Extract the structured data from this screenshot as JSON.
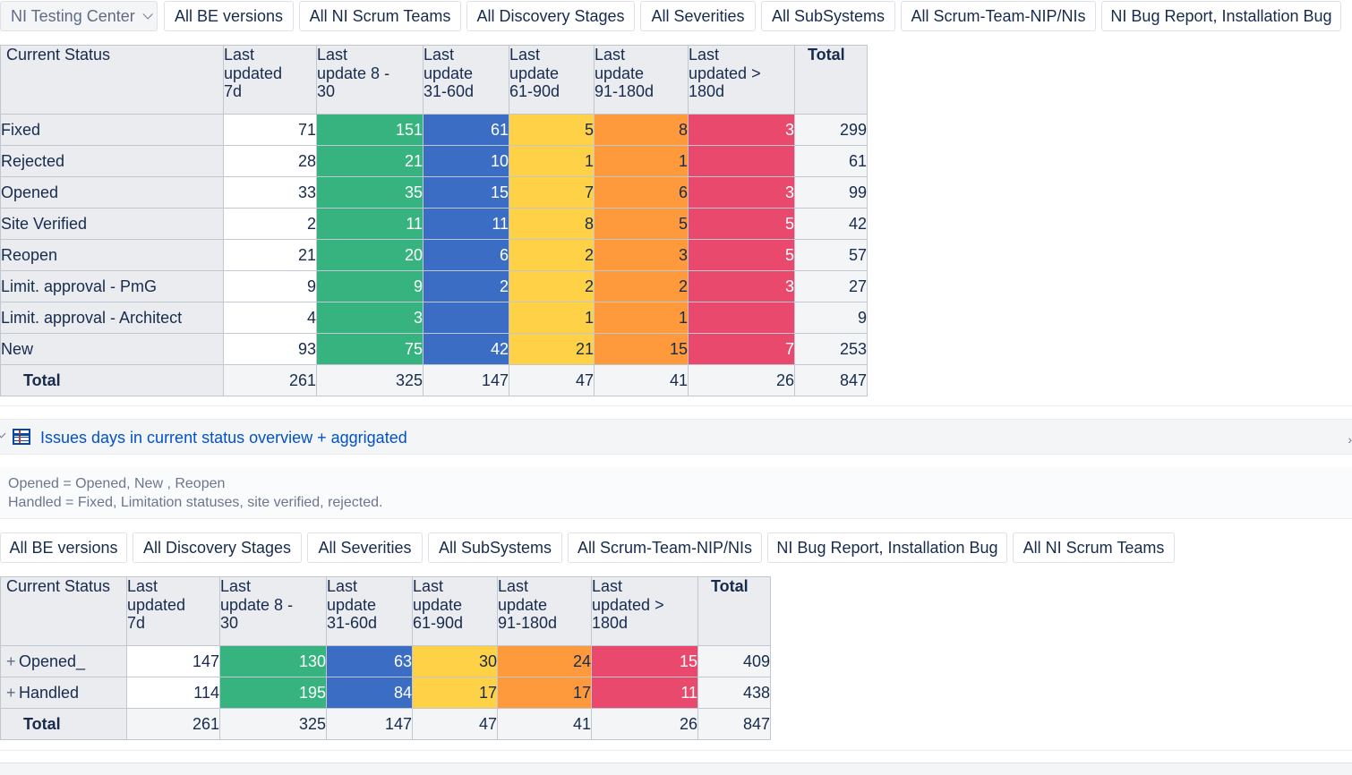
{
  "filters_top": [
    "NI Testing Center",
    "All BE versions",
    "All NI Scrum Teams",
    "All Discovery Stages",
    "All Severities",
    "All SubSystems",
    "All Scrum-Team-NIP/NIs",
    "NI Bug Report, Installation Bug"
  ],
  "table1": {
    "headers": [
      "Current Status",
      "Last\nupdated\n7d",
      "Last\nupdate 8 -\n30",
      "Last\nupdate\n31-60d",
      "Last\nupdate\n61-90d",
      "Last\nupdate\n91-180d",
      "Last\nupdated >\n180d",
      "Total"
    ],
    "rows": [
      {
        "label": "Fixed",
        "values": [
          "71",
          "151",
          "61",
          "5",
          "8",
          "3"
        ],
        "total": "299"
      },
      {
        "label": "Rejected",
        "values": [
          "28",
          "21",
          "10",
          "1",
          "1",
          ""
        ],
        "total": "61"
      },
      {
        "label": "Opened",
        "values": [
          "33",
          "35",
          "15",
          "7",
          "6",
          "3"
        ],
        "total": "99"
      },
      {
        "label": "Site Verified",
        "values": [
          "2",
          "11",
          "11",
          "8",
          "5",
          "5"
        ],
        "total": "42"
      },
      {
        "label": "Reopen",
        "values": [
          "21",
          "20",
          "6",
          "2",
          "3",
          "5"
        ],
        "total": "57"
      },
      {
        "label": "Limit. approval - PmG",
        "values": [
          "9",
          "9",
          "2",
          "2",
          "2",
          "3"
        ],
        "total": "27"
      },
      {
        "label": "Limit. approval - Architect",
        "values": [
          "4",
          "3",
          "",
          "1",
          "1",
          ""
        ],
        "total": "9"
      },
      {
        "label": "New",
        "values": [
          "93",
          "75",
          "42",
          "21",
          "15",
          "7"
        ],
        "total": "253"
      }
    ],
    "total_row": {
      "label": "Total",
      "values": [
        "261",
        "325",
        "147",
        "47",
        "41",
        "26"
      ],
      "total": "847"
    }
  },
  "gadget2": {
    "title": "Issues days in current status overview + aggrigated",
    "note_lines": [
      "Opened = Opened, New , Reopen",
      "Handled = Fixed, Limitation statuses, site verified, rejected."
    ],
    "right_caret": "›"
  },
  "filters_bottom": [
    "All BE versions",
    "All Discovery Stages",
    "All Severities",
    "All SubSystems",
    "All Scrum-Team-NIP/NIs",
    "NI Bug Report, Installation Bug",
    "All NI Scrum Teams"
  ],
  "table2": {
    "headers": [
      "Current Status",
      "Last\nupdated\n7d",
      "Last\nupdate 8 -\n30",
      "Last\nupdate\n31-60d",
      "Last\nupdate\n61-90d",
      "Last\nupdate\n91-180d",
      "Last\nupdated >\n180d",
      "Total"
    ],
    "expand_symbol": "+",
    "rows": [
      {
        "label": "Opened_",
        "values": [
          "147",
          "130",
          "63",
          "30",
          "24",
          "15"
        ],
        "total": "409"
      },
      {
        "label": "Handled",
        "values": [
          "114",
          "195",
          "84",
          "17",
          "17",
          "11"
        ],
        "total": "438"
      }
    ],
    "total_row": {
      "label": "Total",
      "values": [
        "261",
        "325",
        "147",
        "47",
        "41",
        "26"
      ],
      "total": "847"
    }
  },
  "colors": {
    "green": "#36b37e",
    "blue": "#3b6dc4",
    "yellow": "#ffd147",
    "orange": "#ff9a3c",
    "red": "#e8496d",
    "header_bg": "#ebecf0"
  }
}
